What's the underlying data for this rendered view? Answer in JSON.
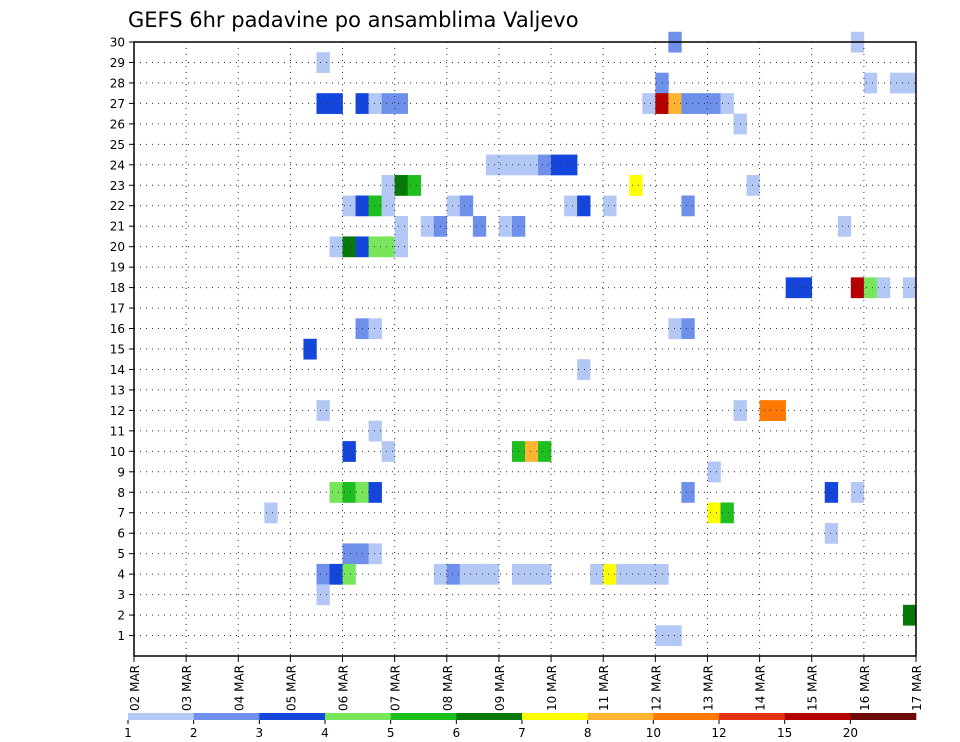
{
  "chart_data": {
    "type": "heatmap",
    "title": "GEFS 6hr padavine po ansamblima Valjevo",
    "xlabel": "",
    "ylabel": "",
    "x_ticks": [
      "02 MAR",
      "03 MAR",
      "04 MAR",
      "05 MAR",
      "06 MAR",
      "07 MAR",
      "08 MAR",
      "09 MAR",
      "10 MAR",
      "11 MAR",
      "12 MAR",
      "13 MAR",
      "14 MAR",
      "15 MAR",
      "16 MAR",
      "17 MAR"
    ],
    "y_ticks": [
      "1",
      "2",
      "3",
      "4",
      "5",
      "6",
      "7",
      "8",
      "9",
      "10",
      "11",
      "12",
      "13",
      "14",
      "15",
      "16",
      "17",
      "18",
      "19",
      "20",
      "21",
      "22",
      "23",
      "24",
      "25",
      "26",
      "27",
      "28",
      "29",
      "30"
    ],
    "x_range_days": [
      0,
      15
    ],
    "y_range": [
      0,
      30
    ],
    "time_step_hours": 6,
    "grid": true,
    "legend_position": "bottom",
    "legend": {
      "labels": [
        "1",
        "2",
        "3",
        "4",
        "5",
        "6",
        "7",
        "8",
        "10",
        "12",
        "15",
        "20"
      ],
      "colors": [
        "#b4c8f5",
        "#6e90eb",
        "#1446dc",
        "#78e65a",
        "#1ebe1e",
        "#087808",
        "#ffff00",
        "#ffb432",
        "#ff7800",
        "#e63214",
        "#b40000",
        "#6e0a0a"
      ]
    },
    "cells": [
      [
        30,
        10.25,
        2
      ],
      [
        30,
        13.75,
        1
      ],
      [
        29,
        3.5,
        1
      ],
      [
        28,
        10.0,
        2
      ],
      [
        28,
        14.0,
        1
      ],
      [
        28,
        14.5,
        1
      ],
      [
        28,
        14.75,
        1
      ],
      [
        27,
        3.5,
        3
      ],
      [
        27,
        3.75,
        3
      ],
      [
        27,
        4.25,
        3
      ],
      [
        27,
        4.5,
        1
      ],
      [
        27,
        4.75,
        2
      ],
      [
        27,
        5.0,
        2
      ],
      [
        27,
        9.75,
        1
      ],
      [
        27,
        10.0,
        11
      ],
      [
        27,
        10.25,
        8
      ],
      [
        27,
        10.5,
        2
      ],
      [
        27,
        10.75,
        2
      ],
      [
        27,
        11.0,
        2
      ],
      [
        27,
        11.25,
        1
      ],
      [
        26,
        11.5,
        1
      ],
      [
        24,
        6.75,
        1
      ],
      [
        24,
        7.0,
        1
      ],
      [
        24,
        7.25,
        1
      ],
      [
        24,
        7.5,
        1
      ],
      [
        24,
        7.75,
        2
      ],
      [
        24,
        8.0,
        3
      ],
      [
        24,
        8.25,
        3
      ],
      [
        23,
        4.75,
        1
      ],
      [
        23,
        5.0,
        6
      ],
      [
        23,
        5.25,
        5
      ],
      [
        23,
        9.5,
        7
      ],
      [
        23,
        11.75,
        1
      ],
      [
        22,
        4.0,
        1
      ],
      [
        22,
        4.25,
        3
      ],
      [
        22,
        4.5,
        5
      ],
      [
        22,
        4.75,
        1
      ],
      [
        22,
        6.0,
        1
      ],
      [
        22,
        6.25,
        2
      ],
      [
        22,
        8.25,
        1
      ],
      [
        22,
        8.5,
        3
      ],
      [
        22,
        9.0,
        1
      ],
      [
        22,
        10.5,
        2
      ],
      [
        21,
        5.0,
        1
      ],
      [
        21,
        5.5,
        1
      ],
      [
        21,
        5.75,
        2
      ],
      [
        21,
        6.5,
        2
      ],
      [
        21,
        7.0,
        1
      ],
      [
        21,
        7.25,
        2
      ],
      [
        21,
        13.5,
        1
      ],
      [
        20,
        3.75,
        1
      ],
      [
        20,
        4.0,
        6
      ],
      [
        20,
        4.25,
        3
      ],
      [
        20,
        4.5,
        4
      ],
      [
        20,
        4.75,
        4
      ],
      [
        20,
        5.0,
        1
      ],
      [
        18,
        12.5,
        3
      ],
      [
        18,
        12.75,
        3
      ],
      [
        18,
        13.75,
        11
      ],
      [
        18,
        14.0,
        4
      ],
      [
        18,
        14.25,
        1
      ],
      [
        18,
        14.75,
        1
      ],
      [
        16,
        4.25,
        2
      ],
      [
        16,
        4.5,
        1
      ],
      [
        16,
        10.25,
        1
      ],
      [
        16,
        10.5,
        2
      ],
      [
        15,
        3.25,
        3
      ],
      [
        14,
        8.5,
        1
      ],
      [
        12,
        3.5,
        1
      ],
      [
        12,
        11.5,
        1
      ],
      [
        12,
        12.0,
        9
      ],
      [
        12,
        12.25,
        9
      ],
      [
        11,
        4.5,
        1
      ],
      [
        10,
        4.0,
        3
      ],
      [
        10,
        4.75,
        1
      ],
      [
        10,
        7.25,
        5
      ],
      [
        10,
        7.5,
        8
      ],
      [
        10,
        7.75,
        5
      ],
      [
        9,
        11.0,
        1
      ],
      [
        8,
        3.75,
        4
      ],
      [
        8,
        4.0,
        5
      ],
      [
        8,
        4.25,
        4
      ],
      [
        8,
        4.5,
        3
      ],
      [
        8,
        10.5,
        2
      ],
      [
        8,
        13.25,
        3
      ],
      [
        8,
        13.75,
        1
      ],
      [
        7,
        2.5,
        1
      ],
      [
        7,
        11.0,
        7
      ],
      [
        7,
        11.25,
        5
      ],
      [
        6,
        13.25,
        1
      ],
      [
        5,
        4.0,
        2
      ],
      [
        5,
        4.25,
        2
      ],
      [
        5,
        4.5,
        1
      ],
      [
        4,
        3.5,
        2
      ],
      [
        4,
        3.75,
        3
      ],
      [
        4,
        4.0,
        4
      ],
      [
        4,
        5.75,
        1
      ],
      [
        4,
        6.0,
        2
      ],
      [
        4,
        6.25,
        1
      ],
      [
        4,
        6.5,
        1
      ],
      [
        4,
        6.75,
        1
      ],
      [
        4,
        7.25,
        1
      ],
      [
        4,
        7.5,
        1
      ],
      [
        4,
        7.75,
        1
      ],
      [
        4,
        8.75,
        1
      ],
      [
        4,
        9.0,
        7
      ],
      [
        4,
        9.25,
        1
      ],
      [
        4,
        9.5,
        1
      ],
      [
        4,
        9.75,
        1
      ],
      [
        4,
        10.0,
        1
      ],
      [
        3,
        3.5,
        1
      ],
      [
        2,
        14.75,
        6
      ],
      [
        1,
        10.0,
        1
      ],
      [
        1,
        10.25,
        1
      ]
    ]
  }
}
